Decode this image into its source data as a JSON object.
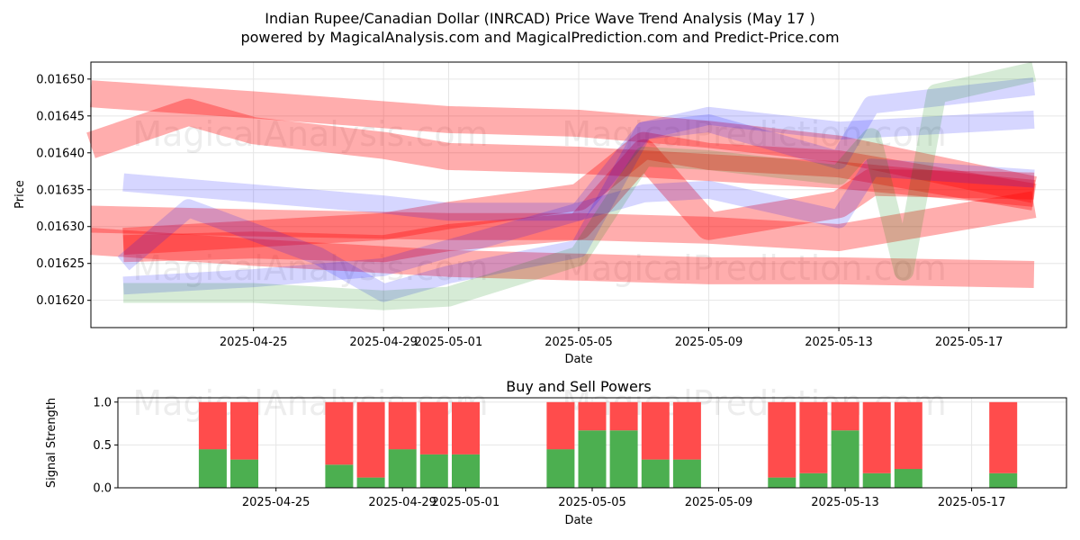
{
  "title_line1": "Indian Rupee/Canadian Dollar (INRCAD) Price Wave Trend Analysis (May 17 )",
  "title_line2": "powered by MagicalAnalysis.com and MagicalPrediction.com and Predict-Price.com",
  "watermarks": [
    "MagicalAnalysis.com",
    "MagicalPrediction.com"
  ],
  "colors": {
    "red_band": "#ff0000",
    "blue_band": "#0000ff",
    "green_band": "#008000",
    "buy": "#4caf50",
    "sell": "#ff4c4c",
    "grid": "#e6e6e6"
  },
  "chart_data": [
    {
      "type": "line",
      "panel": "price",
      "xlabel": "Date",
      "ylabel": "Price",
      "xlim": [
        "2025-04-20",
        "2025-05-20"
      ],
      "ylim": [
        0.016163,
        0.016523
      ],
      "x_ticks": [
        "2025-04-25",
        "2025-04-29",
        "2025-05-01",
        "2025-05-05",
        "2025-05-09",
        "2025-05-13",
        "2025-05-17"
      ],
      "y_ticks": [
        0.0162,
        0.01625,
        0.0163,
        0.01635,
        0.0164,
        0.01645,
        0.0165
      ],
      "y_tick_labels": [
        "0.01620",
        "0.01625",
        "0.01630",
        "0.01635",
        "0.01640",
        "0.01645",
        "0.01650"
      ],
      "grid": true,
      "series": [
        {
          "color": "red",
          "x": [
            "2025-04-20",
            "2025-04-25",
            "2025-05-01",
            "2025-05-05",
            "2025-05-09",
            "2025-05-13",
            "2025-05-19"
          ],
          "y": [
            0.01648,
            0.016465,
            0.016445,
            0.01644,
            0.016425,
            0.016405,
            0.01635
          ]
        },
        {
          "color": "red",
          "x": [
            "2025-04-20",
            "2025-04-23",
            "2025-04-25",
            "2025-04-29",
            "2025-05-01",
            "2025-05-05",
            "2025-05-09",
            "2025-05-13",
            "2025-05-19"
          ],
          "y": [
            0.01641,
            0.016455,
            0.01643,
            0.01641,
            0.016395,
            0.01639,
            0.01638,
            0.01637,
            0.016345
          ]
        },
        {
          "color": "red",
          "x": [
            "2025-04-20",
            "2025-04-25",
            "2025-05-01",
            "2025-05-05",
            "2025-05-09",
            "2025-05-13",
            "2025-05-19"
          ],
          "y": [
            0.01631,
            0.016305,
            0.0163,
            0.0163,
            0.016295,
            0.016285,
            0.01633
          ]
        },
        {
          "color": "red",
          "x": [
            "2025-04-20",
            "2025-04-25",
            "2025-05-01",
            "2025-05-05",
            "2025-05-09",
            "2025-05-13",
            "2025-05-19"
          ],
          "y": [
            0.01628,
            0.016265,
            0.01625,
            0.016245,
            0.01624,
            0.01624,
            0.016235
          ]
        },
        {
          "color": "red",
          "x": [
            "2025-04-21",
            "2025-04-25",
            "2025-04-29",
            "2025-05-01",
            "2025-05-05",
            "2025-05-07",
            "2025-05-09",
            "2025-05-13",
            "2025-05-19"
          ],
          "y": [
            0.01628,
            0.01629,
            0.0163,
            0.016315,
            0.01634,
            0.01641,
            0.016395,
            0.016385,
            0.01634
          ]
        },
        {
          "color": "red",
          "x": [
            "2025-04-21",
            "2025-04-25",
            "2025-04-29",
            "2025-05-01",
            "2025-05-05",
            "2025-05-07",
            "2025-05-09",
            "2025-05-13",
            "2025-05-14",
            "2025-05-19"
          ],
          "y": [
            0.01627,
            0.016275,
            0.01627,
            0.016285,
            0.0163,
            0.0164,
            0.0163,
            0.01633,
            0.01636,
            0.016355
          ]
        },
        {
          "color": "blue",
          "x": [
            "2025-04-21",
            "2025-04-25",
            "2025-04-29",
            "2025-05-01",
            "2025-05-05",
            "2025-05-07",
            "2025-05-09",
            "2025-05-13",
            "2025-05-19"
          ],
          "y": [
            0.01622,
            0.01623,
            0.016245,
            0.01627,
            0.01632,
            0.01643,
            0.01645,
            0.01643,
            0.016445
          ]
        },
        {
          "color": "blue",
          "x": [
            "2025-04-21",
            "2025-04-25",
            "2025-04-29",
            "2025-05-01",
            "2025-05-05",
            "2025-05-07",
            "2025-05-09",
            "2025-05-13",
            "2025-05-14",
            "2025-05-19"
          ],
          "y": [
            0.01636,
            0.016345,
            0.01633,
            0.01632,
            0.01632,
            0.016345,
            0.01635,
            0.01631,
            0.01638,
            0.016365
          ]
        },
        {
          "color": "blue",
          "x": [
            "2025-04-21",
            "2025-04-23",
            "2025-04-27",
            "2025-04-29",
            "2025-05-01",
            "2025-05-05",
            "2025-05-07",
            "2025-05-09",
            "2025-05-13",
            "2025-05-14",
            "2025-05-19"
          ],
          "y": [
            0.01625,
            0.016325,
            0.01626,
            0.01621,
            0.016235,
            0.01627,
            0.01643,
            0.01644,
            0.01639,
            0.016465,
            0.01649
          ]
        },
        {
          "color": "green",
          "x": [
            "2025-04-21",
            "2025-04-25",
            "2025-04-29",
            "2025-05-01",
            "2025-05-05",
            "2025-05-07",
            "2025-05-09",
            "2025-05-13",
            "2025-05-14",
            "2025-05-15",
            "2025-05-16",
            "2025-05-19"
          ],
          "y": [
            0.01621,
            0.01621,
            0.0162,
            0.016205,
            0.01626,
            0.016395,
            0.01639,
            0.01637,
            0.01642,
            0.01624,
            0.01648,
            0.01651
          ]
        }
      ]
    },
    {
      "type": "bar",
      "panel": "signal",
      "title": "Buy and Sell Powers",
      "xlabel": "Date",
      "ylabel": "Signal Strength",
      "ylim": [
        0,
        1.05
      ],
      "y_ticks": [
        0.0,
        0.5,
        1.0
      ],
      "y_tick_labels": [
        "0.0",
        "0.5",
        "1.0"
      ],
      "x_ticks": [
        "2025-04-25",
        "2025-04-29",
        "2025-05-01",
        "2025-05-05",
        "2025-05-09",
        "2025-05-13",
        "2025-05-17"
      ],
      "grid": true,
      "categories": [
        "2025-04-23",
        "2025-04-24",
        "2025-04-27",
        "2025-04-28",
        "2025-04-29",
        "2025-04-30",
        "2025-05-01",
        "2025-05-04",
        "2025-05-05",
        "2025-05-06",
        "2025-05-07",
        "2025-05-08",
        "2025-05-11",
        "2025-05-12",
        "2025-05-13",
        "2025-05-14",
        "2025-05-15",
        "2025-05-18"
      ],
      "series": [
        {
          "values": [
            0.45,
            0.33,
            0.27,
            0.12,
            0.45,
            0.39,
            0.39,
            0.45,
            0.67,
            0.67,
            0.33,
            0.33,
            0.12,
            0.17,
            0.67,
            0.17,
            0.22,
            0.17
          ]
        },
        {
          "values": [
            0.55,
            0.67,
            0.73,
            0.88,
            0.55,
            0.61,
            0.61,
            0.55,
            0.33,
            0.33,
            0.67,
            0.67,
            0.88,
            0.83,
            0.33,
            0.83,
            0.78,
            0.83
          ]
        }
      ]
    }
  ]
}
